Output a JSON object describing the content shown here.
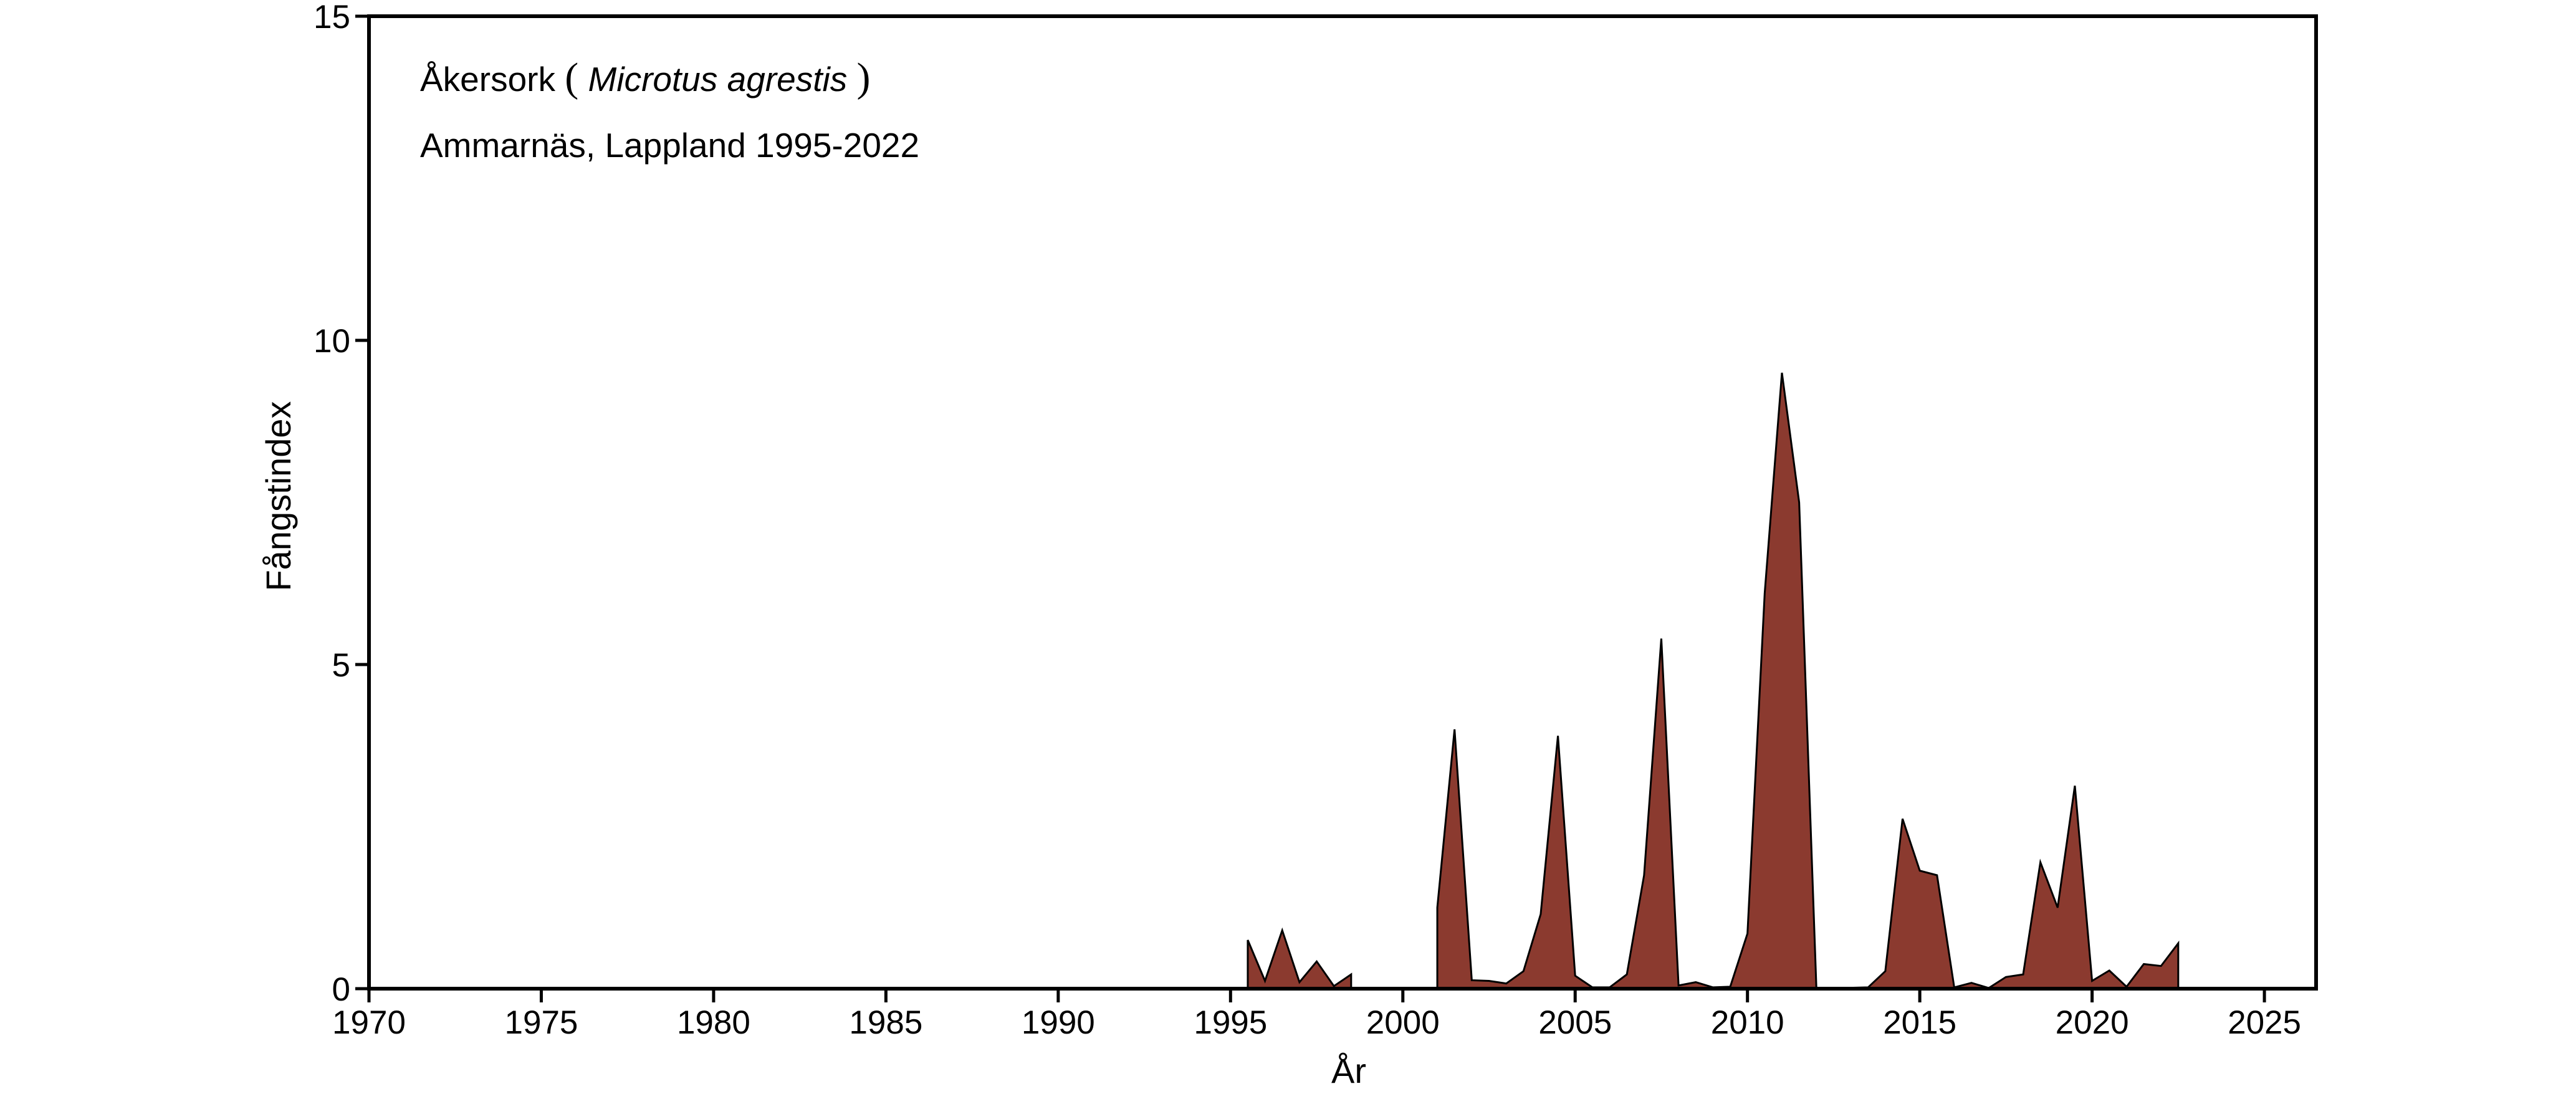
{
  "chart_data": {
    "type": "area",
    "title": "",
    "xlabel": "År",
    "ylabel": "Fångstindex",
    "xlim": [
      1970,
      2026.5
    ],
    "ylim": [
      0,
      15
    ],
    "xticks": [
      1970,
      1975,
      1980,
      1985,
      1990,
      1995,
      2000,
      2005,
      2010,
      2015,
      2020,
      2025
    ],
    "xtick_labels": [
      "1970",
      "1975",
      "1980",
      "1985",
      "1990",
      "1995",
      "2000",
      "2005",
      "2010",
      "2015",
      "2020",
      "2025"
    ],
    "yticks": [
      0,
      5,
      10,
      15
    ],
    "ytick_labels": [
      "0",
      "5",
      "10",
      "15"
    ],
    "grid": false,
    "legend": "none",
    "fill_color": "#8B3A2F",
    "stroke_color": "#000000",
    "annotations": {
      "species_common": "Åkersork",
      "paren_open": "(",
      "species_latin": "Microtus agrestis",
      "paren_close": ")",
      "location": "Ammarnäs, Lappland 1995-2022"
    },
    "series": [
      {
        "x": [
          1995.5,
          1995.5,
          1996.0,
          1996.5,
          1997.0,
          1997.5,
          1998.0,
          1998.5,
          1998.5,
          2001.0,
          2001.0,
          2001.5,
          2002.0,
          2002.5,
          2003.0,
          2003.5,
          2004.0,
          2004.5,
          2005.0,
          2005.5,
          2006.0,
          2006.5,
          2007.0,
          2007.5,
          2008.0,
          2008.5,
          2009.0,
          2009.5,
          2010.0,
          2010.5,
          2011.0,
          2011.5,
          2012.0,
          2012.0,
          2013.5,
          2014.0,
          2014.5,
          2015.0,
          2015.5,
          2016.0,
          2016.5,
          2017.0,
          2017.5,
          2018.0,
          2018.5,
          2019.0,
          2019.5,
          2020.0,
          2020.5,
          2021.0,
          2021.5,
          2022.0,
          2022.5,
          2022.5
        ],
        "y": [
          0,
          0.75,
          0.12,
          0.9,
          0.1,
          0.42,
          0.04,
          0.22,
          0,
          0,
          1.25,
          4.0,
          0.13,
          0.12,
          0.08,
          0.27,
          1.15,
          3.9,
          0.2,
          0.02,
          0.02,
          0.22,
          1.75,
          5.4,
          0.05,
          0.1,
          0.02,
          0.03,
          0.85,
          6.1,
          9.5,
          7.5,
          0,
          0,
          0.02,
          0.27,
          2.62,
          1.82,
          1.75,
          0.02,
          0.09,
          0.01,
          0.18,
          0.22,
          1.95,
          1.25,
          3.13,
          0.12,
          0.28,
          0.03,
          0.38,
          0.35,
          0.7,
          0
        ]
      }
    ]
  }
}
